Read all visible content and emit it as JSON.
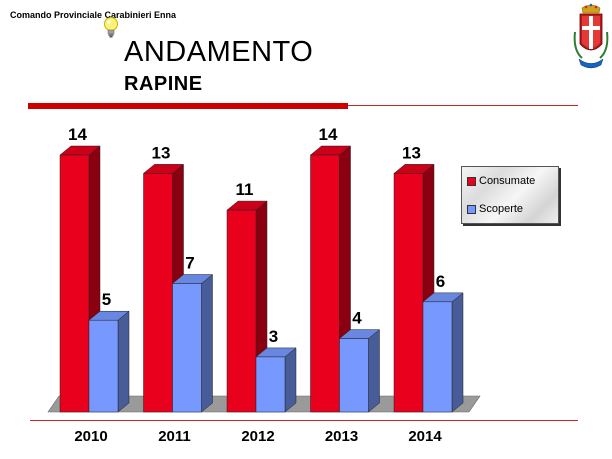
{
  "header": {
    "organization": "Comando Provinciale Carabinieri Enna",
    "title": "ANDAMENTO",
    "subtitle": "RAPINE"
  },
  "colors": {
    "consumate": "#e8001c",
    "scoperte": "#7799ff",
    "accent_rule": "#cc0000"
  },
  "icons": {
    "bulb": "light-bulb-icon",
    "crest": "carabinieri-crest-icon"
  },
  "chart_data": {
    "type": "bar",
    "categories": [
      "2010",
      "2011",
      "2012",
      "2013",
      "2014"
    ],
    "series": [
      {
        "name": "Consumate",
        "values": [
          14,
          13,
          11,
          14,
          13
        ]
      },
      {
        "name": "Scoperte",
        "values": [
          5,
          7,
          3,
          4,
          6
        ]
      }
    ],
    "ylim": [
      0,
      14
    ],
    "grid": false,
    "legend_position": "right",
    "data_labels": true,
    "style": "3d"
  }
}
